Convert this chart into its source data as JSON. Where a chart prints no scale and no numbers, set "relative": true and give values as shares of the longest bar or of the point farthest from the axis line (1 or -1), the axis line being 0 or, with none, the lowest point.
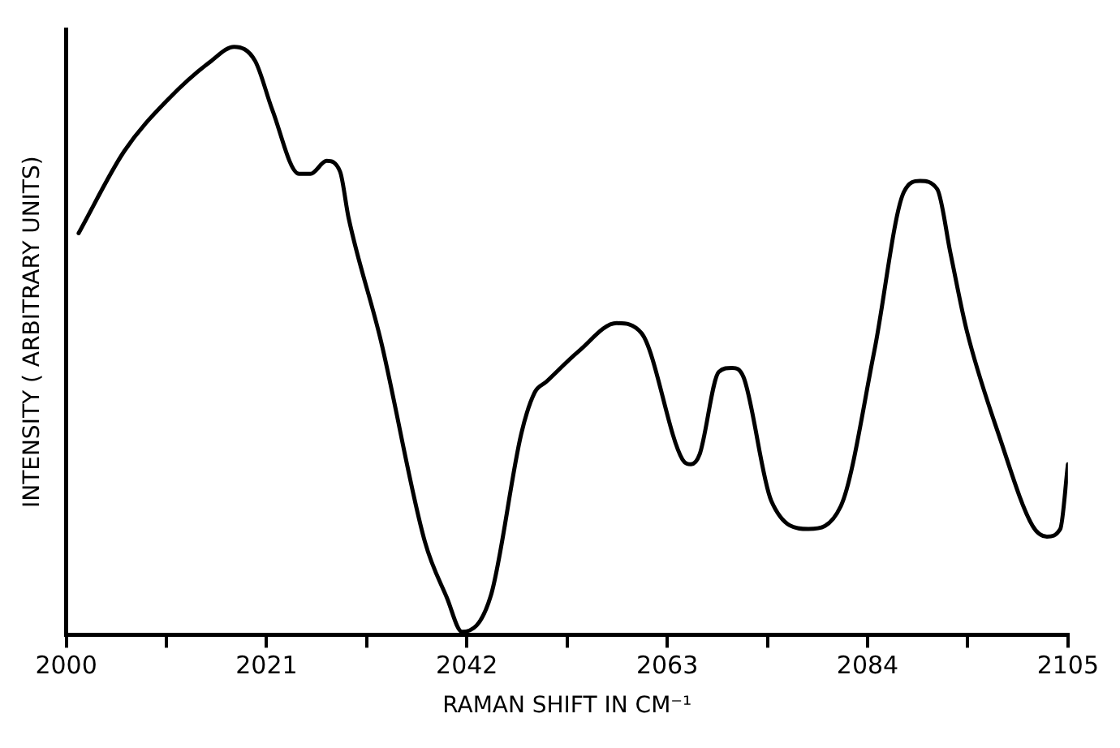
{
  "chart_data": {
    "type": "line",
    "xlabel": "RAMAN SHIFT IN CM⁻¹",
    "ylabel": "INTENSITY ( ARBITRARY UNITS)",
    "relative": true,
    "xlim": [
      2000,
      2105
    ],
    "xticks": [
      2000,
      {
        "value": 2010.5,
        "label": null
      },
      2021,
      {
        "value": 2031.5,
        "label": null
      },
      2042,
      {
        "value": 2052.5,
        "label": null
      },
      2063,
      {
        "value": 2073.5,
        "label": null
      },
      2084,
      {
        "value": 2094.5,
        "label": null
      },
      2105
    ],
    "grid": false,
    "legend": false,
    "marker": "none",
    "line_style": "solid",
    "series": [
      {
        "color": "#000000",
        "x": [
          2001.3,
          2006.1,
          2010.7,
          2015.2,
          2017.6,
          2019.8,
          2021.6,
          2024.4,
          2025.6,
          2027.3,
          2028.7,
          2029.6,
          2033.0,
          2037.6,
          2039.9,
          2041.5,
          2044.5,
          2047.7,
          2049.1,
          2050.3,
          2053.7,
          2057.7,
          2060.3,
          2064.6,
          2065.5,
          2066.4,
          2068.4,
          2069.8,
          2071.0,
          2073.9,
          2077.8,
          2081.2,
          2084.7,
          2087.8,
          2089.5,
          2091.3,
          2092.7,
          2094.4,
          2097.9,
          2101.3,
          2102.8,
          2104.2,
          2105
        ],
        "values": [
          0.683,
          0.823,
          0.911,
          0.976,
          1.0,
          0.976,
          0.893,
          0.784,
          0.784,
          0.806,
          0.788,
          0.709,
          0.499,
          0.158,
          0.063,
          0.005,
          0.066,
          0.342,
          0.412,
          0.43,
          0.482,
          0.53,
          0.513,
          0.298,
          0.29,
          0.307,
          0.447,
          0.454,
          0.438,
          0.228,
          0.18,
          0.219,
          0.482,
          0.753,
          0.772,
          0.758,
          0.648,
          0.517,
          0.333,
          0.185,
          0.167,
          0.18,
          0.29
        ]
      }
    ]
  }
}
